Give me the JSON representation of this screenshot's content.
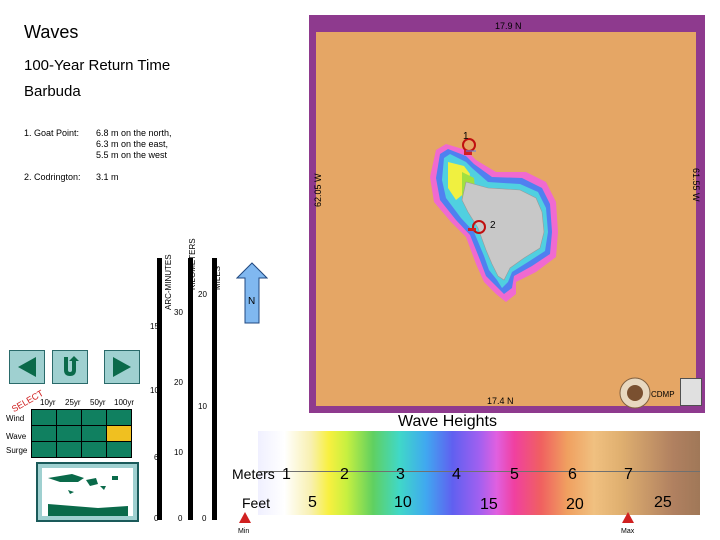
{
  "header": {
    "title": "Waves",
    "subtitle": "100-Year Return Time",
    "place": "Barbuda"
  },
  "points": [
    {
      "label": "1. Goat Point:",
      "desc": "6.8 m on the north,\n6.3 m on the east,\n5.5 m on the west"
    },
    {
      "label": "2. Codrington:",
      "desc": "3.1 m"
    }
  ],
  "map": {
    "lat_top": "17.9 N",
    "lat_bottom": "17.4 N",
    "lon_left": "62.05 W",
    "lon_right": "61.55 W",
    "marker_1": "1",
    "marker_2": "2",
    "ocean_color": "#e8a868",
    "frame_color": "#8e3a8e",
    "land_color": "#c8c8c8"
  },
  "scales": {
    "arc_minutes_label": "ARC-MINUTES",
    "kilometers_label": "KILOMETERS",
    "miles_label": "MILES",
    "arc_ticks": [
      "15",
      "10",
      "6",
      "0"
    ],
    "km_ticks": [
      "30",
      "20",
      "10",
      "0"
    ],
    "mi_ticks": [
      "20",
      "10",
      "0"
    ],
    "north": "N"
  },
  "grid": {
    "corner_label": "SELECT",
    "columns": [
      "10yr",
      "25yr",
      "50yr",
      "100yr"
    ],
    "rows": [
      "Wind",
      "Wave",
      "Surge"
    ],
    "selected": {
      "row": "Wave",
      "column": "100yr",
      "color": "#f0c020"
    },
    "active_color": "#108060"
  },
  "legend": {
    "title": "Wave Heights",
    "meters_label": "Meters",
    "meters_ticks": [
      "1",
      "2",
      "3",
      "4",
      "5",
      "6",
      "7"
    ],
    "feet_label": "Feet",
    "feet_ticks": [
      "5",
      "10",
      "15",
      "20",
      "25"
    ],
    "min_label": "Min",
    "max_label": "Max"
  },
  "logo": {
    "text": "CDMP"
  },
  "icons": {
    "back": "left-triangle-icon",
    "home": "u-turn-icon",
    "forward": "right-triangle-icon",
    "north": "north-arrow-icon",
    "minimap": "caribbean-map-icon",
    "crest": "oas-crest-icon"
  }
}
